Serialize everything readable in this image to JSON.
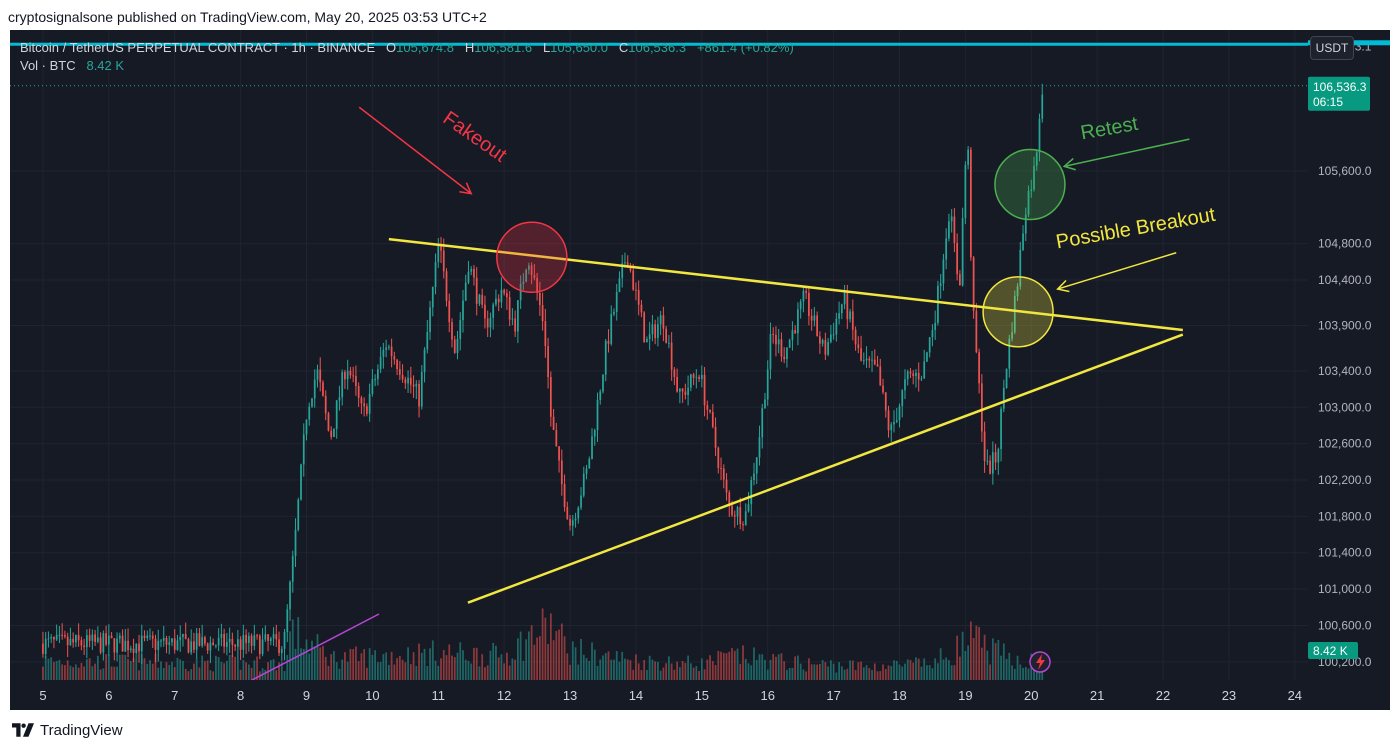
{
  "publisher_line": "cryptosignalsone published on TradingView.com, May 20, 2025 03:53 UTC+2",
  "footer": {
    "brand": "TradingView"
  },
  "legend": {
    "symbol": "Bitcoin / TetherUS PERPETUAL CONTRACT · 1h · BINANCE",
    "open_label": "O",
    "open": "105,674.8",
    "high_label": "H",
    "high": "106,581.6",
    "low_label": "L",
    "low": "105,650.0",
    "close_label": "C",
    "close": "106,536.3",
    "change": "+861.4 (+0.82%)",
    "vol_label": "Vol · BTC",
    "vol_value": "8.42 K"
  },
  "currency_button": "USDT",
  "price_tag": {
    "price": "106,536.3",
    "countdown": "06:15"
  },
  "top_line_label": "106,993.1",
  "volume_tag": "8.42 K",
  "colors": {
    "background": "#161a25",
    "up": "#26a69a",
    "down": "#ef5350",
    "trendline": "#f2e640",
    "fakeout": "#f23645",
    "retest": "#4caf50",
    "cyan_line": "#00bcd4",
    "purple_line": "#b845d6"
  },
  "icons": [
    "tradingview-logo-icon",
    "lightning-icon"
  ],
  "chart_data": {
    "type": "candlestick",
    "x_axis": {
      "label": "",
      "ticks": [
        "5",
        "6",
        "7",
        "8",
        "9",
        "10",
        "11",
        "12",
        "13",
        "14",
        "15",
        "16",
        "17",
        "18",
        "19",
        "20",
        "21",
        "22",
        "23",
        "24"
      ],
      "tick_values": [
        5,
        6,
        7,
        8,
        9,
        10,
        11,
        12,
        13,
        14,
        15,
        16,
        17,
        18,
        19,
        20,
        21,
        22,
        23,
        24
      ],
      "range": [
        4.5,
        24.2
      ]
    },
    "y_axis": {
      "label": "",
      "ticks": [
        "100,200.0",
        "100,600.0",
        "101,000.0",
        "101,400.0",
        "101,800.0",
        "102,200.0",
        "102,600.0",
        "103,000.0",
        "103,400.0",
        "103,900.0",
        "104,400.0",
        "104,800.0",
        "105,600.0"
      ],
      "tick_values": [
        100200,
        100600,
        101000,
        101400,
        101800,
        102200,
        102600,
        103000,
        103400,
        103900,
        104400,
        104800,
        105600
      ],
      "range": [
        100000,
        107150
      ]
    },
    "last_price": 106536.3,
    "top_line": 106993.1,
    "trendlines": [
      {
        "name": "upper",
        "from": [
          10.25,
          104850
        ],
        "to": [
          22.3,
          103850
        ],
        "color": "#f2e640"
      },
      {
        "name": "lower",
        "from": [
          11.45,
          100850
        ],
        "to": [
          22.3,
          103800
        ],
        "color": "#f2e640"
      },
      {
        "name": "volume",
        "from": [
          8.0,
          0
        ],
        "to": [
          10.1,
          1
        ],
        "color": "#b845d6"
      }
    ],
    "annotations": [
      {
        "text": "Fakeout",
        "x": 11.5,
        "y": 105920,
        "color": "#f23645"
      },
      {
        "text": "Retest",
        "x": 21.2,
        "y": 106000,
        "color": "#4caf50"
      },
      {
        "text": "Possible Breakout",
        "x": 21.6,
        "y": 104900,
        "color": "#f2e640"
      }
    ],
    "circles": [
      {
        "name": "fakeout",
        "x": 12.42,
        "y": 104650,
        "color": "#f23645"
      },
      {
        "name": "retest",
        "x": 19.98,
        "y": 105450,
        "color": "#4caf50"
      },
      {
        "name": "breakout",
        "x": 19.8,
        "y": 104050,
        "color": "#f2e640"
      }
    ],
    "arrows": [
      {
        "name": "fakeout",
        "from": [
          9.8,
          106300
        ],
        "to": [
          11.5,
          105350
        ],
        "color": "#f23645"
      },
      {
        "name": "retest",
        "from": [
          22.4,
          105950
        ],
        "to": [
          20.5,
          105650
        ],
        "color": "#4caf50"
      },
      {
        "name": "breakout",
        "from": [
          22.2,
          104700
        ],
        "to": [
          20.4,
          104300
        ],
        "color": "#f2e640"
      }
    ],
    "price_anchors": [
      [
        8.7,
        100400
      ],
      [
        8.85,
        101400
      ],
      [
        9.05,
        103000
      ],
      [
        9.2,
        103400
      ],
      [
        9.4,
        102650
      ],
      [
        9.65,
        103500
      ],
      [
        9.9,
        102900
      ],
      [
        10.25,
        103700
      ],
      [
        10.5,
        103400
      ],
      [
        10.75,
        103100
      ],
      [
        11.05,
        104800
      ],
      [
        11.3,
        103600
      ],
      [
        11.5,
        104600
      ],
      [
        11.75,
        103900
      ],
      [
        12.0,
        104300
      ],
      [
        12.2,
        103900
      ],
      [
        12.4,
        104700
      ],
      [
        12.65,
        103900
      ],
      [
        12.75,
        102900
      ],
      [
        12.9,
        102200
      ],
      [
        13.05,
        101700
      ],
      [
        13.3,
        102300
      ],
      [
        13.6,
        103700
      ],
      [
        13.9,
        104700
      ],
      [
        14.2,
        103700
      ],
      [
        14.45,
        104000
      ],
      [
        14.7,
        103100
      ],
      [
        15.0,
        103400
      ],
      [
        15.3,
        102400
      ],
      [
        15.45,
        101900
      ],
      [
        15.7,
        101800
      ],
      [
        15.9,
        102600
      ],
      [
        16.1,
        103800
      ],
      [
        16.3,
        103600
      ],
      [
        16.6,
        104200
      ],
      [
        16.9,
        103600
      ],
      [
        17.2,
        104200
      ],
      [
        17.45,
        103500
      ],
      [
        17.7,
        103400
      ],
      [
        17.9,
        102700
      ],
      [
        18.15,
        103300
      ],
      [
        18.4,
        103400
      ],
      [
        18.6,
        104100
      ],
      [
        18.8,
        105200
      ],
      [
        18.95,
        104300
      ],
      [
        19.07,
        106100
      ],
      [
        19.15,
        104100
      ],
      [
        19.35,
        102300
      ],
      [
        19.52,
        102450
      ],
      [
        19.65,
        103400
      ],
      [
        19.82,
        104300
      ],
      [
        19.95,
        105200
      ],
      [
        20.1,
        105650
      ],
      [
        20.2,
        106536
      ]
    ],
    "volume_anchors": [
      [
        5.0,
        0.35
      ],
      [
        8.7,
        0.3
      ],
      [
        8.75,
        0.9
      ],
      [
        9.4,
        0.4
      ],
      [
        11.0,
        0.5
      ],
      [
        12.0,
        0.45
      ],
      [
        12.4,
        0.8
      ],
      [
        12.7,
        1.0
      ],
      [
        13.0,
        0.55
      ],
      [
        14.0,
        0.35
      ],
      [
        15.0,
        0.3
      ],
      [
        15.5,
        0.45
      ],
      [
        16.5,
        0.3
      ],
      [
        17.5,
        0.25
      ],
      [
        18.5,
        0.3
      ],
      [
        18.9,
        0.6
      ],
      [
        19.1,
        0.75
      ],
      [
        19.4,
        0.55
      ],
      [
        19.7,
        0.4
      ],
      [
        20.2,
        0.3
      ]
    ],
    "candle_range": [
      5.0,
      20.2
    ],
    "candles_per_day": 24
  }
}
